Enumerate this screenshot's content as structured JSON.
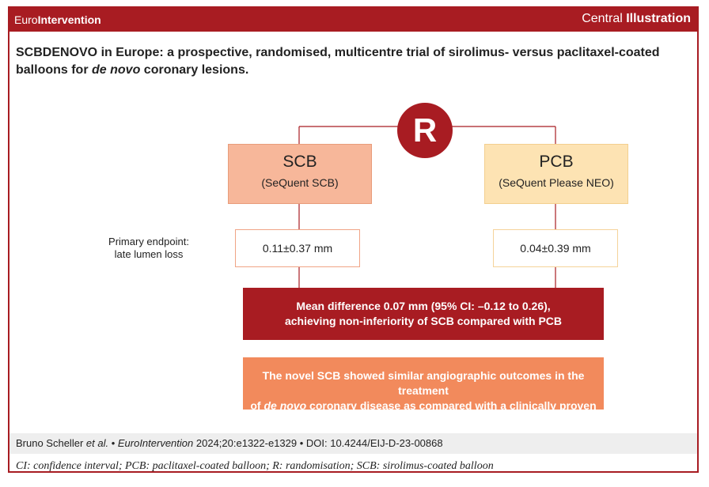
{
  "header": {
    "brand_prefix": "Euro",
    "brand_bold": "Intervention",
    "label_normal": "Central ",
    "label_bold": "Illustration"
  },
  "title": {
    "part1": "SCBDENOVO in Europe: a prospective, randomised, multicentre trial of sirolimus- versus paclitaxel-coated balloons for ",
    "italic": "de novo",
    "part2": " coronary lesions."
  },
  "randomisation": {
    "label": "R"
  },
  "arms": [
    {
      "name": "SCB",
      "device": "(SeQuent SCB)",
      "result": "0.11±0.37 mm"
    },
    {
      "name": "PCB",
      "device": "(SeQuent Please NEO)",
      "result": "0.04±0.39 mm"
    }
  ],
  "endpoint": {
    "line1": "Primary endpoint:",
    "line2": "late lumen loss"
  },
  "difference": {
    "line1": "Mean difference 0.07 mm (95% CI: –0.12 to 0.26),",
    "line2": "achieving non-inferiority of SCB compared with PCB"
  },
  "conclusion": {
    "line1": "The novel SCB showed similar angiographic outcomes in the treatment",
    "line2_pre": "of ",
    "line2_italic": "de novo",
    "line2_post": " coronary disease as compared with a clinically proven PCB"
  },
  "citation": {
    "authors": "Bruno Scheller ",
    "etal": "et al.",
    "sep": " • ",
    "journal": "EuroIntervention",
    "ref": " 2024;20:e1322-e1329 • DOI: 10.4244/EIJ-D-23-00868"
  },
  "abbreviations": "CI: confidence interval; PCB: paclitaxel-coated balloon; R: randomisation; SCB: sirolimus-coated balloon",
  "colors": {
    "brand_red": "#a81c22",
    "scb_fill": "#f7b79a",
    "pcb_fill": "#fde3b3",
    "conclusion_fill": "#f28a5c"
  }
}
